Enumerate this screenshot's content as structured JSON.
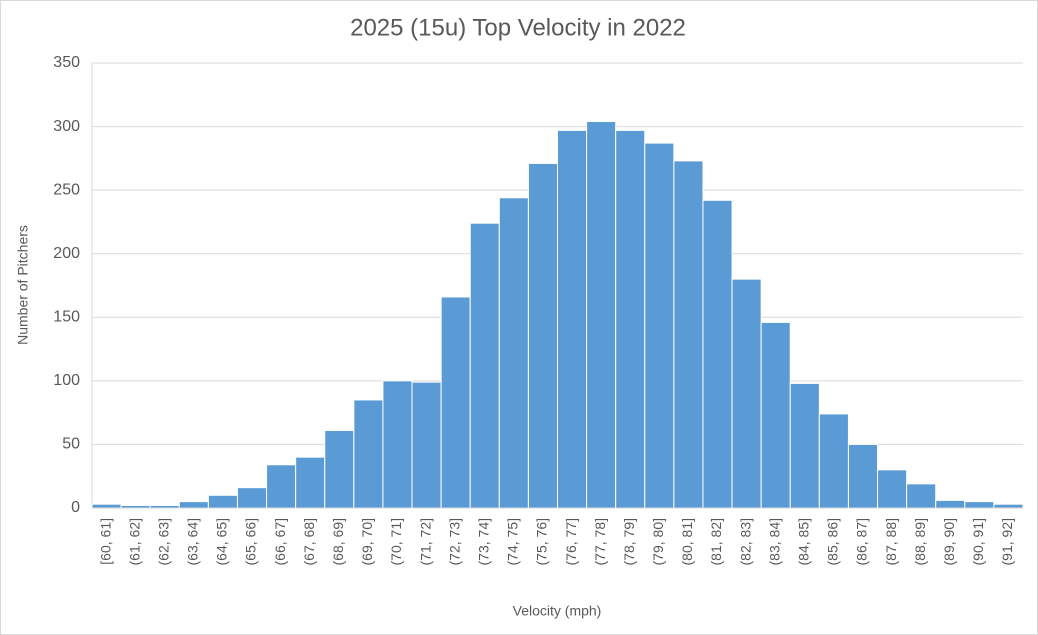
{
  "chart_data": {
    "type": "bar",
    "title": "2025 (15u) Top Velocity in 2022",
    "x_label": "Velocity (mph)",
    "y_label": "Number of Pitchers",
    "categories": [
      "[60, 61]",
      "(61, 62]",
      "(62, 63]",
      "(63, 64]",
      "(64, 65]",
      "(65, 66]",
      "(66, 67]",
      "(67, 68]",
      "(68, 69]",
      "(69, 70]",
      "(70, 71]",
      "(71, 72]",
      "(72, 73]",
      "(73, 74]",
      "(74, 75]",
      "(75, 76]",
      "(76, 77]",
      "(77, 78]",
      "(78, 79]",
      "(79, 80]",
      "(80, 81]",
      "(81, 82]",
      "(82, 83]",
      "(83, 84]",
      "(84, 85]",
      "(85, 86]",
      "(86, 87]",
      "(87, 88]",
      "(88, 89]",
      "(89, 90]",
      "(90, 91]",
      "(91, 92]"
    ],
    "values": [
      3,
      2,
      2,
      5,
      10,
      16,
      34,
      40,
      61,
      85,
      100,
      99,
      166,
      224,
      244,
      271,
      297,
      304,
      297,
      287,
      273,
      242,
      180,
      146,
      98,
      74,
      50,
      30,
      19,
      6,
      5,
      3
    ],
    "color": "#5b9bd5",
    "ylim": [
      0,
      350
    ],
    "yticks": [
      0,
      50,
      100,
      150,
      200,
      250,
      300,
      350
    ],
    "grid": true
  }
}
